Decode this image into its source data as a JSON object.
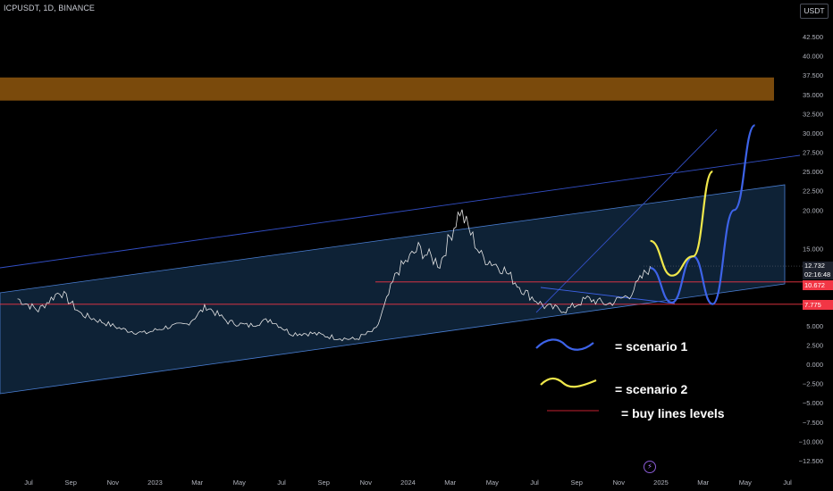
{
  "header": {
    "symbol": "ICPUSDT, 1D, BINANCE",
    "currency": "USDT"
  },
  "price_labels": {
    "last_price": "12.732",
    "countdown": "02:16:48",
    "level_1": "10.672",
    "level_2": "7.775"
  },
  "annotations": {
    "scenario_1": "= scenario 1",
    "scenario_2": "= scenario 2",
    "buy_lines": "= buy lines levels"
  },
  "colors": {
    "background": "#000000",
    "price_line": "#e6e6e6",
    "scenario_1": "#3d63e8",
    "scenario_2": "#f0e84b",
    "buy_line": "#f23645",
    "channel": "#4a7fd4",
    "channel_fill": "#0e2236",
    "resistance_zone": "#7a4a0c"
  },
  "chart_data": {
    "type": "line",
    "title": "ICPUSDT, 1D, BINANCE",
    "xlabel": "",
    "ylabel": "",
    "ylim": [
      -13.5,
      45
    ],
    "x_tick_labels": [
      "Jul",
      "Sep",
      "Nov",
      "2023",
      "Mar",
      "May",
      "Jul",
      "Sep",
      "Nov",
      "2024",
      "Mar",
      "May",
      "Jul",
      "Sep",
      "Nov",
      "2025",
      "Mar",
      "May",
      "Jul"
    ],
    "y_ticks": [
      42.5,
      40,
      37.5,
      35,
      32.5,
      30,
      27.5,
      25,
      22.5,
      20,
      15,
      5,
      2.5,
      0,
      -2.5,
      -5,
      -7.5,
      -10,
      -12.5
    ],
    "y_tick_labels": [
      "42.500",
      "40.000",
      "37.500",
      "35.000",
      "32.500",
      "30.000",
      "27.500",
      "25.000",
      "22.500",
      "20.000",
      "15.000",
      "5.000",
      "2.500",
      "0.000",
      "−2.500",
      "−5.000",
      "−7.500",
      "−10.000",
      "−12.500"
    ],
    "price_series_approx": {
      "name": "ICPUSDT",
      "dates": [
        "2022-06",
        "2022-07",
        "2022-08",
        "2022-09",
        "2022-10",
        "2022-11",
        "2022-12",
        "2023-01",
        "2023-02",
        "2023-03",
        "2023-04",
        "2023-05",
        "2023-06",
        "2023-07",
        "2023-08",
        "2023-09",
        "2023-10",
        "2023-11",
        "2023-12",
        "2024-01",
        "2024-02",
        "2024-03",
        "2024-04",
        "2024-05",
        "2024-06",
        "2024-07",
        "2024-08",
        "2024-09",
        "2024-10",
        "2024-11",
        "2024-12"
      ],
      "values": [
        8.5,
        7.0,
        9.5,
        6.5,
        5.5,
        4.5,
        4.0,
        4.8,
        5.2,
        7.5,
        5.5,
        5.0,
        5.8,
        4.0,
        4.0,
        3.5,
        3.2,
        4.5,
        12.0,
        15.0,
        13.0,
        20.0,
        14.0,
        12.5,
        9.5,
        7.5,
        7.0,
        8.5,
        7.8,
        9.0,
        12.732
      ]
    },
    "projections": [
      {
        "name": "scenario 1",
        "dates": [
          "2024-12",
          "2025-01",
          "2025-02",
          "2025-03",
          "2025-04",
          "2025-05"
        ],
        "values": [
          12.5,
          8.0,
          14.0,
          7.8,
          20.0,
          31.0
        ]
      },
      {
        "name": "scenario 2",
        "dates": [
          "2024-12",
          "2025-01",
          "2025-02",
          "2025-03"
        ],
        "values": [
          16.0,
          11.5,
          14.0,
          25.0
        ]
      }
    ],
    "horizontal_levels": [
      10.672,
      7.775
    ],
    "resistance_zone": [
      34.2,
      37.2
    ],
    "grid": false
  }
}
